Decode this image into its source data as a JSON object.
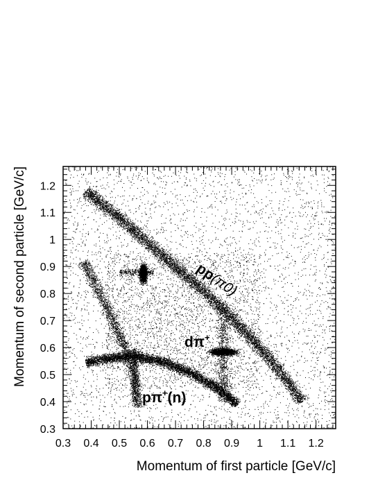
{
  "chart_data": {
    "type": "scatter",
    "title": "",
    "xlabel": "Momentum of first particle  [GeV/c]",
    "ylabel": "Momentum of second particle  [GeV/c]",
    "xlim": [
      0.3,
      1.27
    ],
    "ylim": [
      0.3,
      1.27
    ],
    "xticks": [
      "0.3",
      "0.4",
      "0.5",
      "0.6",
      "0.7",
      "0.8",
      "0.9",
      "1",
      "1.1",
      "1.2"
    ],
    "yticks": [
      "0.3",
      "0.4",
      "0.5",
      "0.6",
      "0.7",
      "0.8",
      "0.9",
      "1",
      "1.1",
      "1.2"
    ],
    "grid": false,
    "legend": "none",
    "point_color": "#000000",
    "bands": [
      {
        "name": "pp(π0)",
        "points": [
          [
            0.38,
            1.18
          ],
          [
            0.5,
            1.08
          ],
          [
            0.6,
            0.99
          ],
          [
            0.7,
            0.9
          ],
          [
            0.8,
            0.81
          ],
          [
            0.9,
            0.71
          ],
          [
            1.0,
            0.6
          ],
          [
            1.08,
            0.5
          ],
          [
            1.15,
            0.4
          ]
        ]
      },
      {
        "name": "pπ+(n)",
        "points": [
          [
            0.38,
            0.545
          ],
          [
            0.45,
            0.56
          ],
          [
            0.55,
            0.57
          ],
          [
            0.65,
            0.55
          ],
          [
            0.75,
            0.51
          ],
          [
            0.85,
            0.45
          ],
          [
            0.92,
            0.39
          ]
        ]
      },
      {
        "name": "pπ+(n) second branch",
        "points": [
          [
            0.37,
            0.92
          ],
          [
            0.42,
            0.82
          ],
          [
            0.47,
            0.72
          ],
          [
            0.51,
            0.62
          ],
          [
            0.54,
            0.55
          ],
          [
            0.56,
            0.45
          ],
          [
            0.565,
            0.38
          ]
        ]
      }
    ],
    "clusters": [
      {
        "name": "pp(π0) spot",
        "x": 0.585,
        "y": 0.875
      },
      {
        "name": "dπ+",
        "x": 0.87,
        "y": 0.585
      }
    ],
    "annotations": [
      {
        "text": "pp",
        "sub": "(π0)",
        "x": 0.82,
        "y": 0.82
      },
      {
        "text": "dπ",
        "sup": "+",
        "x": 0.76,
        "y": 0.61
      },
      {
        "text": "pπ",
        "sup": "+",
        "after": "(n)",
        "x": 0.55,
        "y": 0.38
      }
    ]
  }
}
